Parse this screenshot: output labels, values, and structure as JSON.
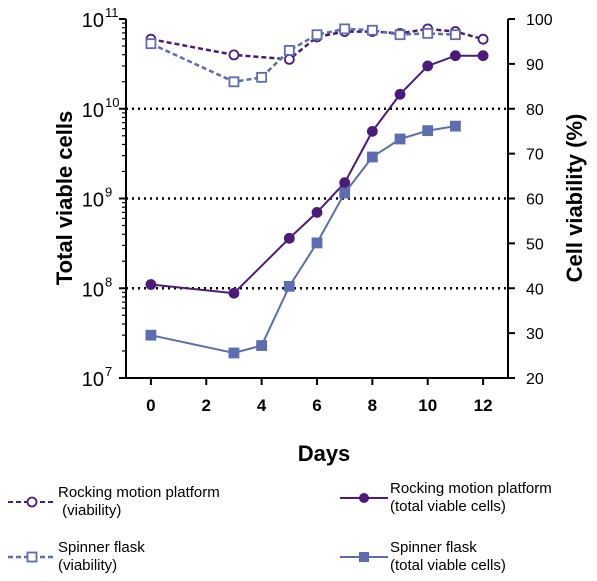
{
  "chart_data": {
    "type": "line",
    "xlabel": "Days",
    "ylabel_left": "Total viable cells",
    "ylabel_right": "Cell viability (%)",
    "x_ticks": [
      "0",
      "2",
      "4",
      "6",
      "8",
      "10",
      "12"
    ],
    "xlim": [
      -0.9,
      12.9
    ],
    "y_left_scale": "log",
    "y_left_ticks": [
      {
        "base": "10",
        "exp": "7",
        "value": 10000000
      },
      {
        "base": "10",
        "exp": "8",
        "value": 100000000
      },
      {
        "base": "10",
        "exp": "9",
        "value": 1000000000
      },
      {
        "base": "10",
        "exp": "10",
        "value": 10000000000
      },
      {
        "base": "10",
        "exp": "11",
        "value": 100000000000
      }
    ],
    "ylim_left": [
      10000000,
      100000000000
    ],
    "y_right_ticks": [
      "20",
      "30",
      "40",
      "50",
      "60",
      "70",
      "80",
      "90",
      "100"
    ],
    "ylim_right": [
      20,
      100
    ],
    "reference_lines_left": [
      1000000000,
      10000000000
    ],
    "reference_lines_right": [
      40
    ],
    "series": [
      {
        "name": "Rocking motion platform\n (viability)",
        "axis": "right",
        "style": "dashed",
        "marker": "circle-open",
        "color": "#4b1a7a",
        "x": [
          0,
          3,
          5,
          6,
          7,
          8,
          9,
          10,
          11,
          12
        ],
        "y": [
          95.5,
          92,
          91,
          96,
          97.2,
          97.2,
          96.8,
          97.8,
          97.2,
          95.5
        ]
      },
      {
        "name": "Spinner flask\n(viability)",
        "axis": "right",
        "style": "dashed",
        "marker": "square-open",
        "color": "#5c6db0",
        "x": [
          0,
          3,
          4,
          5,
          6,
          7,
          8,
          9,
          10,
          11
        ],
        "y": [
          94.5,
          86,
          87,
          93,
          96.5,
          97.8,
          97.5,
          96.5,
          96.8,
          96.5
        ]
      },
      {
        "name": "Rocking motion platform\n(total viable cells)",
        "axis": "left",
        "style": "solid",
        "marker": "circle-filled",
        "color": "#4b1a7a",
        "x": [
          0,
          3,
          5,
          6,
          7,
          8,
          9,
          10,
          11,
          12
        ],
        "y": [
          110000000,
          88000000,
          360000000,
          700000000,
          1500000000,
          5600000000,
          14500000000,
          30000000000,
          39000000000,
          39000000000
        ]
      },
      {
        "name": "Spinner flask\n(total viable cells)",
        "axis": "left",
        "style": "solid",
        "marker": "square-filled",
        "color": "#5c6db0",
        "x": [
          0,
          3,
          4,
          5,
          6,
          7,
          8,
          9,
          10,
          11
        ],
        "y": [
          30000000,
          19000000,
          23000000,
          105000000,
          320000000,
          1150000000,
          2900000000,
          4600000000,
          5700000000,
          6400000000
        ]
      }
    ],
    "legend_placement": "bottom"
  }
}
